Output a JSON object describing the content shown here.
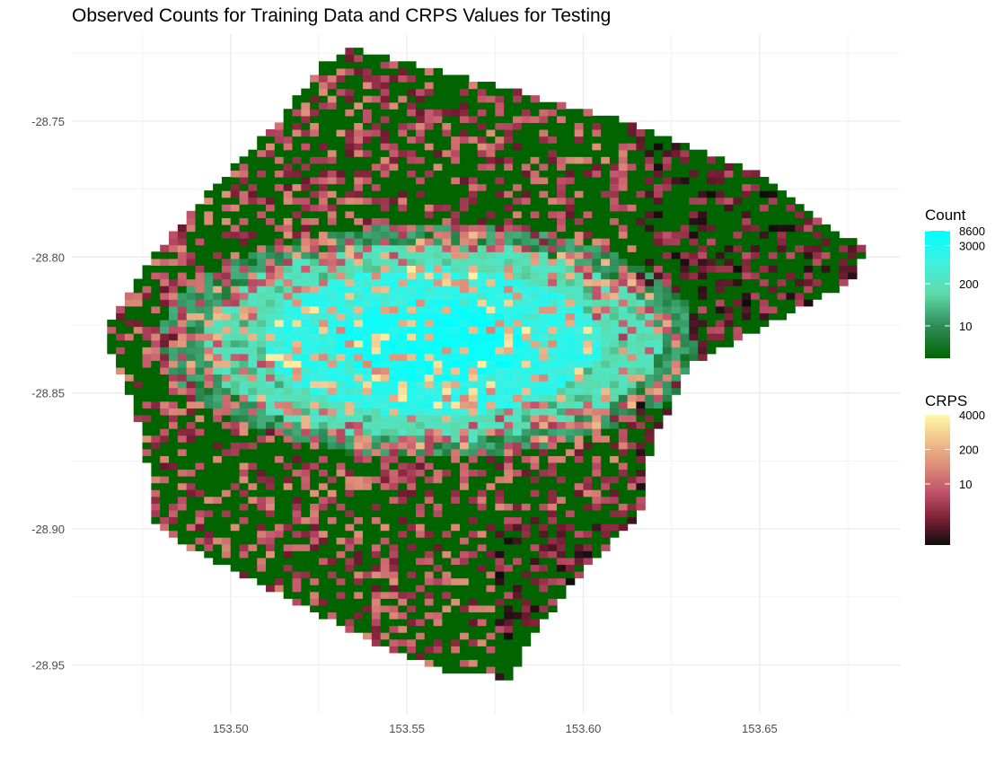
{
  "title": "Observed Counts for Training Data and CRPS Values for Testing",
  "chart_data": {
    "type": "heatmap",
    "title": "Observed Counts for Training Data and CRPS Values for Testing",
    "xlabel": "",
    "ylabel": "",
    "xlim": [
      153.455,
      153.69
    ],
    "ylim": [
      -28.968,
      -28.718
    ],
    "x_ticks": [
      {
        "value": 153.5,
        "label": "153.50"
      },
      {
        "value": 153.55,
        "label": "153.55"
      },
      {
        "value": 153.6,
        "label": "153.60"
      },
      {
        "value": 153.65,
        "label": "153.65"
      }
    ],
    "y_ticks": [
      {
        "value": -28.75,
        "label": "-28.75"
      },
      {
        "value": -28.8,
        "label": "-28.80"
      },
      {
        "value": -28.85,
        "label": "-28.85"
      },
      {
        "value": -28.9,
        "label": "-28.90"
      },
      {
        "value": -28.95,
        "label": "-28.95"
      }
    ],
    "grid": true,
    "grid_cell_size_degrees": 0.0025,
    "region_polygon": [
      [
        153.534,
        -28.723
      ],
      [
        153.575,
        -28.737
      ],
      [
        153.612,
        -28.75
      ],
      [
        153.648,
        -28.768
      ],
      [
        153.665,
        -28.785
      ],
      [
        153.68,
        -28.797
      ],
      [
        153.675,
        -28.81
      ],
      [
        153.645,
        -28.83
      ],
      [
        153.63,
        -28.84
      ],
      [
        153.619,
        -28.87
      ],
      [
        153.616,
        -28.895
      ],
      [
        153.6,
        -28.915
      ],
      [
        153.585,
        -28.94
      ],
      [
        153.58,
        -28.955
      ],
      [
        153.56,
        -28.952
      ],
      [
        153.538,
        -28.94
      ],
      [
        153.5,
        -28.915
      ],
      [
        153.479,
        -28.9
      ],
      [
        153.477,
        -28.88
      ],
      [
        153.473,
        -28.855
      ],
      [
        153.464,
        -28.83
      ],
      [
        153.467,
        -28.82
      ],
      [
        153.482,
        -28.793
      ],
      [
        153.502,
        -28.765
      ],
      [
        153.515,
        -28.748
      ],
      [
        153.525,
        -28.73
      ]
    ],
    "hotspot": {
      "center": [
        153.557,
        -28.831
      ],
      "semi_axes": [
        0.048,
        0.027
      ]
    },
    "legends": [
      {
        "name": "Count",
        "scale": "log",
        "labels": [
          "8600",
          "3000",
          "200",
          "10"
        ],
        "values": [
          8600,
          3000,
          200,
          10
        ],
        "range": [
          1,
          8600
        ],
        "colors": [
          "#006400",
          "#2e8b57",
          "#5fd9a8",
          "#40f0e0",
          "#00ffff"
        ],
        "position": "right"
      },
      {
        "name": "CRPS",
        "scale": "log",
        "labels": [
          "4000",
          "200",
          "10"
        ],
        "values": [
          4000,
          200,
          10
        ],
        "range": [
          0.05,
          4000
        ],
        "colors": [
          "#0d0d0d",
          "#7a1f35",
          "#c0506a",
          "#dc8a78",
          "#f0c08c",
          "#fff8a8"
        ],
        "position": "right"
      }
    ],
    "layers": [
      {
        "name": "Count",
        "description_of_distribution": "high counts concentrated in central-west hotspot; low counts elsewhere"
      },
      {
        "name": "CRPS",
        "description_of_distribution": "scattered test cells over whole region; high values in hotspot, near-zero values in east and south"
      }
    ]
  }
}
